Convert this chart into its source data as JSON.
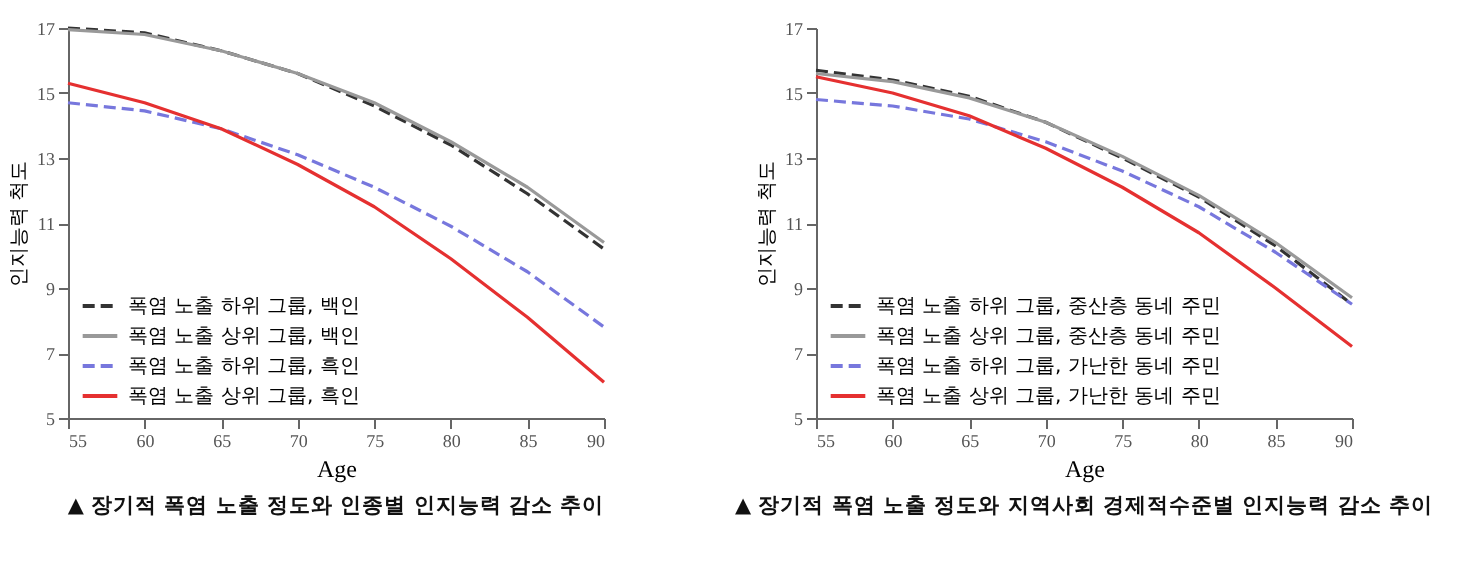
{
  "chart_data": [
    {
      "type": "line",
      "title": "▲ 장기적 폭염 노출 정도와 인종별 인지능력 감소 추이",
      "xlabel": "Age",
      "ylabel": "인지능력 척도",
      "x": [
        55,
        60,
        65,
        70,
        75,
        80,
        85,
        90
      ],
      "xlim": [
        55,
        90
      ],
      "xticks": [
        55,
        60,
        65,
        70,
        75,
        80,
        85,
        90
      ],
      "ylim": [
        5,
        17
      ],
      "yticks": [
        5,
        7,
        9,
        11,
        13,
        15,
        17
      ],
      "grid": false,
      "legend": "bottom left",
      "series": [
        {
          "name": "폭염 노출 하위 그룹, 백인",
          "color": "#333333",
          "line_style": "dashed",
          "values": [
            17.0,
            16.85,
            16.3,
            15.6,
            14.6,
            13.4,
            11.9,
            10.2
          ]
        },
        {
          "name": "폭염 노출 상위 그룹, 백인",
          "color": "#999999",
          "line_style": "solid",
          "values": [
            16.95,
            16.8,
            16.3,
            15.6,
            14.7,
            13.5,
            12.1,
            10.4
          ]
        },
        {
          "name": "폭염 노출 하위 그룹, 흑인",
          "color": "#7777dd",
          "line_style": "dashed",
          "values": [
            14.7,
            14.45,
            13.9,
            13.1,
            12.1,
            10.9,
            9.5,
            7.8
          ]
        },
        {
          "name": "폭염 노출 상위 그룹, 흑인",
          "color": "#e53030",
          "line_style": "solid",
          "values": [
            15.3,
            14.7,
            13.9,
            12.8,
            11.5,
            9.9,
            8.1,
            6.1
          ]
        }
      ]
    },
    {
      "type": "line",
      "title": "▲ 장기적 폭염 노출 정도와 지역사회 경제적수준별 인지능력 감소 추이",
      "xlabel": "Age",
      "ylabel": "인지능력 척도",
      "x": [
        55,
        60,
        65,
        70,
        75,
        80,
        85,
        90
      ],
      "xlim": [
        55,
        90
      ],
      "xticks": [
        55,
        60,
        65,
        70,
        75,
        80,
        85,
        90
      ],
      "ylim": [
        5,
        17
      ],
      "yticks": [
        5,
        7,
        9,
        11,
        13,
        15,
        17
      ],
      "grid": false,
      "legend": "bottom left",
      "series": [
        {
          "name": "폭염 노출 하위 그룹, 중산층 동네 주민",
          "color": "#333333",
          "line_style": "dashed",
          "values": [
            15.7,
            15.4,
            14.9,
            14.1,
            13.0,
            11.8,
            10.3,
            8.5
          ]
        },
        {
          "name": "폭염 노출 상위 그룹, 중산층 동네 주민",
          "color": "#999999",
          "line_style": "solid",
          "values": [
            15.6,
            15.35,
            14.85,
            14.1,
            13.05,
            11.85,
            10.4,
            8.7
          ]
        },
        {
          "name": "폭염 노출 하위 그룹, 가난한 동네 주민",
          "color": "#7777dd",
          "line_style": "dashed",
          "values": [
            14.8,
            14.6,
            14.2,
            13.5,
            12.6,
            11.5,
            10.1,
            8.5
          ]
        },
        {
          "name": "폭염 노출 상위 그룹, 가난한 동네 주민",
          "color": "#e53030",
          "line_style": "solid",
          "values": [
            15.5,
            15.0,
            14.3,
            13.3,
            12.1,
            10.7,
            9.0,
            7.2
          ]
        }
      ]
    }
  ]
}
